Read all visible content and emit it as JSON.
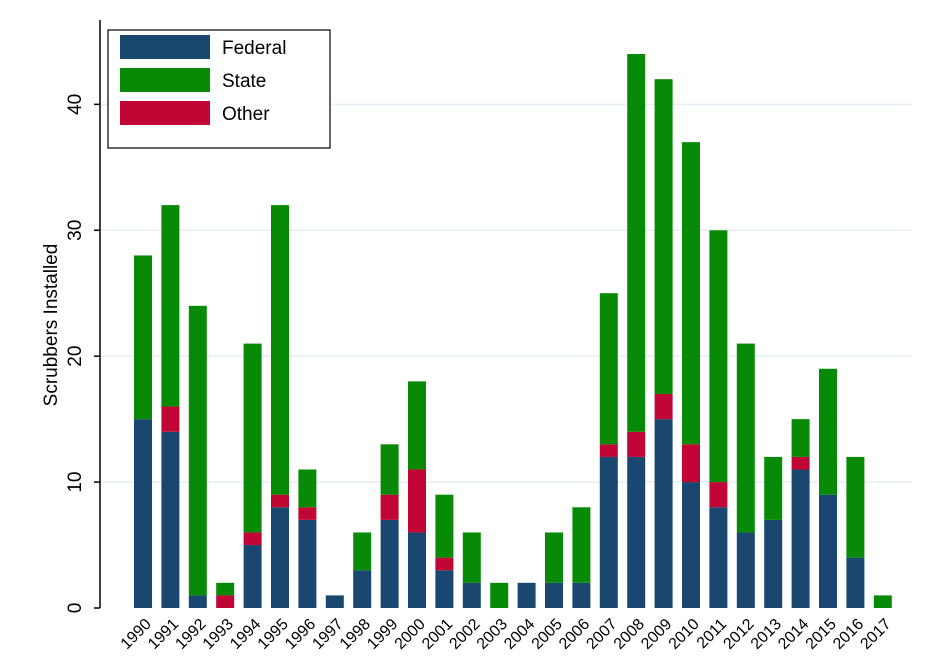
{
  "chart_data": {
    "type": "stacked_bar",
    "y_label": "Scrubbers Installed",
    "categories": [
      "1990",
      "1991",
      "1992",
      "1993",
      "1994",
      "1995",
      "1996",
      "1997",
      "1998",
      "1999",
      "2000",
      "2001",
      "2002",
      "2003",
      "2004",
      "2005",
      "2006",
      "2007",
      "2008",
      "2009",
      "2010",
      "2011",
      "2012",
      "2013",
      "2014",
      "2015",
      "2016",
      "2017"
    ],
    "series": [
      {
        "name": "Federal",
        "color": "#1a476f",
        "values": [
          15,
          14,
          1,
          0,
          5,
          8,
          7,
          1,
          3,
          7,
          6,
          3,
          2,
          0,
          2,
          2,
          2,
          12,
          12,
          15,
          10,
          8,
          6,
          7,
          11,
          9,
          4,
          0
        ]
      },
      {
        "name": "State",
        "color": "#078b07",
        "values": [
          13,
          16,
          23,
          1,
          15,
          23,
          3,
          0,
          3,
          4,
          7,
          5,
          4,
          2,
          0,
          4,
          6,
          12,
          30,
          25,
          24,
          20,
          15,
          5,
          3,
          10,
          8,
          1
        ]
      },
      {
        "name": "Other",
        "color": "#c10534",
        "values": [
          0,
          2,
          0,
          1,
          1,
          1,
          1,
          0,
          0,
          2,
          5,
          1,
          0,
          0,
          0,
          0,
          0,
          1,
          2,
          2,
          3,
          2,
          0,
          0,
          1,
          0,
          0,
          0
        ]
      }
    ],
    "ylim": [
      0,
      46.7
    ],
    "yticks": [
      0,
      10,
      20,
      30,
      40
    ],
    "grid": true,
    "legend": "top-left"
  }
}
